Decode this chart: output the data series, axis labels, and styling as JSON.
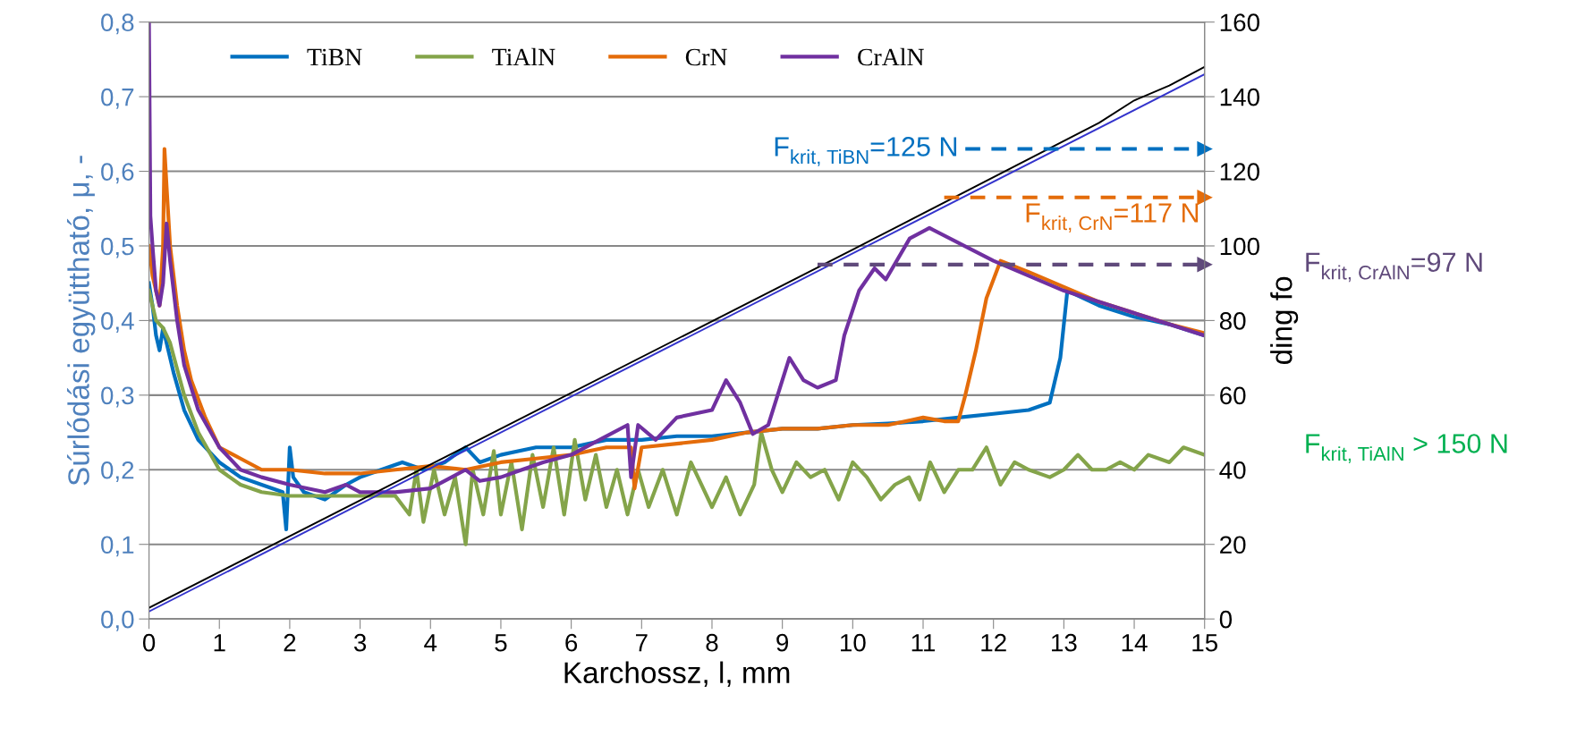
{
  "chart_data": {
    "type": "line",
    "xlabel": "Karchossz, l, mm",
    "ylabel": "Súrlódási együttható, μ, -",
    "y2label": "ding fo",
    "xlim": [
      0,
      15
    ],
    "xticks": [
      0,
      1,
      2,
      3,
      4,
      5,
      6,
      7,
      8,
      9,
      10,
      11,
      12,
      13,
      14,
      15
    ],
    "ylim": [
      0,
      0.8
    ],
    "yticks": [
      {
        "value": 0,
        "label": "0,0"
      },
      {
        "value": 0.1,
        "label": "0,1"
      },
      {
        "value": 0.2,
        "label": "0,2"
      },
      {
        "value": 0.3,
        "label": "0,3"
      },
      {
        "value": 0.4,
        "label": "0,4"
      },
      {
        "value": 0.5,
        "label": "0,5"
      },
      {
        "value": 0.6,
        "label": "0,6"
      },
      {
        "value": 0.7,
        "label": "0,7"
      },
      {
        "value": 0.8,
        "label": "0,8"
      }
    ],
    "y2lim": [
      0,
      160
    ],
    "y2ticks": [
      0,
      20,
      40,
      60,
      80,
      100,
      120,
      140,
      160
    ],
    "grid": "y",
    "legend": "top left",
    "line_style": "solid",
    "marker": "none",
    "series": [
      {
        "name": "TiBN",
        "color": "#0070c0",
        "x": [
          0,
          0.05,
          0.1,
          0.15,
          0.2,
          0.25,
          0.35,
          0.5,
          0.7,
          1.0,
          1.3,
          1.6,
          1.9,
          1.95,
          2.0,
          2.05,
          2.2,
          2.5,
          2.8,
          3.0,
          3.3,
          3.6,
          3.9,
          4.2,
          4.5,
          4.7,
          5.0,
          5.5,
          6.0,
          6.5,
          7.0,
          7.5,
          8.0,
          8.5,
          9.0,
          9.5,
          10,
          10.5,
          11,
          11.5,
          12,
          12.5,
          12.8,
          12.95,
          13.05,
          13.5,
          14,
          14.5,
          15
        ],
        "values": [
          0.45,
          0.42,
          0.38,
          0.36,
          0.39,
          0.37,
          0.33,
          0.28,
          0.24,
          0.21,
          0.19,
          0.18,
          0.17,
          0.12,
          0.23,
          0.19,
          0.17,
          0.16,
          0.18,
          0.19,
          0.2,
          0.21,
          0.2,
          0.21,
          0.23,
          0.21,
          0.22,
          0.23,
          0.23,
          0.24,
          0.24,
          0.245,
          0.245,
          0.25,
          0.255,
          0.255,
          0.26,
          0.262,
          0.265,
          0.27,
          0.275,
          0.28,
          0.29,
          0.35,
          0.44,
          0.42,
          0.405,
          0.395,
          0.38
        ]
      },
      {
        "name": "TiAlN",
        "color": "#84a44a",
        "x": [
          0,
          0.1,
          0.2,
          0.3,
          0.5,
          0.7,
          1.0,
          1.3,
          1.6,
          2.0,
          2.5,
          3.0,
          3.5,
          3.7,
          3.8,
          3.9,
          4.05,
          4.2,
          4.35,
          4.5,
          4.6,
          4.75,
          4.9,
          5.0,
          5.15,
          5.3,
          5.45,
          5.6,
          5.75,
          5.9,
          6.05,
          6.2,
          6.35,
          6.5,
          6.65,
          6.8,
          6.95,
          7.1,
          7.3,
          7.5,
          7.7,
          7.85,
          8.0,
          8.2,
          8.4,
          8.6,
          8.7,
          8.85,
          9.0,
          9.2,
          9.4,
          9.6,
          9.8,
          10.0,
          10.2,
          10.4,
          10.6,
          10.8,
          10.95,
          11.1,
          11.3,
          11.5,
          11.7,
          11.9,
          12.1,
          12.3,
          12.5,
          12.8,
          13.0,
          13.2,
          13.4,
          13.6,
          13.8,
          14.0,
          14.2,
          14.5,
          14.7,
          15
        ],
        "values": [
          0.44,
          0.4,
          0.39,
          0.37,
          0.3,
          0.25,
          0.2,
          0.18,
          0.17,
          0.165,
          0.165,
          0.165,
          0.165,
          0.14,
          0.2,
          0.13,
          0.2,
          0.14,
          0.19,
          0.1,
          0.2,
          0.14,
          0.225,
          0.14,
          0.21,
          0.12,
          0.22,
          0.15,
          0.23,
          0.14,
          0.24,
          0.16,
          0.22,
          0.15,
          0.2,
          0.14,
          0.2,
          0.15,
          0.2,
          0.14,
          0.21,
          0.18,
          0.15,
          0.19,
          0.14,
          0.18,
          0.25,
          0.2,
          0.17,
          0.21,
          0.19,
          0.2,
          0.16,
          0.21,
          0.19,
          0.16,
          0.18,
          0.19,
          0.16,
          0.21,
          0.17,
          0.2,
          0.2,
          0.23,
          0.18,
          0.21,
          0.2,
          0.19,
          0.2,
          0.22,
          0.2,
          0.2,
          0.21,
          0.2,
          0.22,
          0.21,
          0.23,
          0.22
        ]
      },
      {
        "name": "CrN",
        "color": "#e46c0a",
        "x": [
          0,
          0.05,
          0.1,
          0.15,
          0.2,
          0.22,
          0.25,
          0.3,
          0.4,
          0.5,
          0.6,
          0.8,
          1.0,
          1.3,
          1.6,
          2.0,
          2.5,
          3.0,
          3.5,
          4.0,
          4.5,
          5.0,
          5.5,
          6.0,
          6.5,
          6.85,
          6.9,
          7.0,
          7.5,
          8.0,
          8.5,
          9.0,
          9.5,
          10,
          10.5,
          11,
          11.3,
          11.5,
          11.6,
          11.75,
          11.9,
          12.1,
          12.5,
          13,
          13.5,
          14,
          14.5,
          15
        ],
        "values": [
          0.5,
          0.46,
          0.44,
          0.42,
          0.5,
          0.63,
          0.58,
          0.5,
          0.42,
          0.36,
          0.32,
          0.27,
          0.23,
          0.215,
          0.2,
          0.2,
          0.195,
          0.195,
          0.2,
          0.205,
          0.2,
          0.21,
          0.215,
          0.22,
          0.23,
          0.23,
          0.175,
          0.23,
          0.235,
          0.24,
          0.25,
          0.255,
          0.255,
          0.26,
          0.26,
          0.27,
          0.265,
          0.265,
          0.3,
          0.36,
          0.43,
          0.48,
          0.465,
          0.445,
          0.425,
          0.41,
          0.395,
          0.383
        ]
      },
      {
        "name": "CrAlN",
        "color": "#7030a0",
        "x": [
          0,
          0.02,
          0.05,
          0.1,
          0.15,
          0.2,
          0.25,
          0.3,
          0.4,
          0.5,
          0.7,
          1.0,
          1.3,
          1.6,
          2.0,
          2.5,
          2.8,
          3.0,
          3.5,
          4.0,
          4.3,
          4.5,
          4.7,
          5.0,
          5.3,
          5.6,
          6.0,
          6.4,
          6.8,
          6.85,
          6.95,
          7.2,
          7.5,
          8.0,
          8.2,
          8.4,
          8.58,
          8.8,
          9.1,
          9.3,
          9.5,
          9.76,
          9.88,
          10.09,
          10.31,
          10.47,
          10.81,
          11.09,
          12,
          13,
          14,
          15
        ],
        "values": [
          0.8,
          0.54,
          0.5,
          0.44,
          0.42,
          0.45,
          0.53,
          0.48,
          0.4,
          0.34,
          0.28,
          0.23,
          0.2,
          0.19,
          0.18,
          0.17,
          0.18,
          0.17,
          0.17,
          0.175,
          0.19,
          0.2,
          0.185,
          0.19,
          0.2,
          0.21,
          0.22,
          0.24,
          0.26,
          0.19,
          0.26,
          0.24,
          0.27,
          0.28,
          0.32,
          0.29,
          0.248,
          0.26,
          0.35,
          0.32,
          0.31,
          0.32,
          0.38,
          0.44,
          0.47,
          0.455,
          0.51,
          0.524,
          0.48,
          0.44,
          0.41,
          0.38
        ]
      },
      {
        "color": "#000000",
        "axis": "y2",
        "x": [
          0,
          5,
          10,
          13.5,
          14,
          14.5,
          15
        ],
        "values": [
          3,
          51,
          99,
          133,
          139,
          143,
          148
        ]
      },
      {
        "color": "#3333cc",
        "axis": "y2",
        "x": [
          0,
          15
        ],
        "values": [
          2,
          146
        ]
      },
      {
        "name": "F$_{krit, TiBN}$=125 N",
        "color": "#0070c0",
        "axis": "y2",
        "line_style": "dashed",
        "marker": "triangle",
        "x": [
          11.6,
          15
        ],
        "values": [
          126,
          126
        ]
      },
      {
        "name": "F$_{krit, CrN}$=117 N",
        "color": "#e46c0a",
        "axis": "y2",
        "line_style": "dashed",
        "marker": "triangle",
        "x": [
          11.3,
          15
        ],
        "values": [
          113,
          113
        ]
      },
      {
        "name": "F$_{krit, CrAlN}$=97 N",
        "color": "#604a7b",
        "axis": "y2",
        "line_style": "dashed",
        "marker": "triangle",
        "x": [
          9.5,
          15
        ],
        "values": [
          95,
          95
        ]
      }
    ],
    "annotations": [
      "F$_{krit, TiAlN}$ > 150 N"
    ]
  }
}
